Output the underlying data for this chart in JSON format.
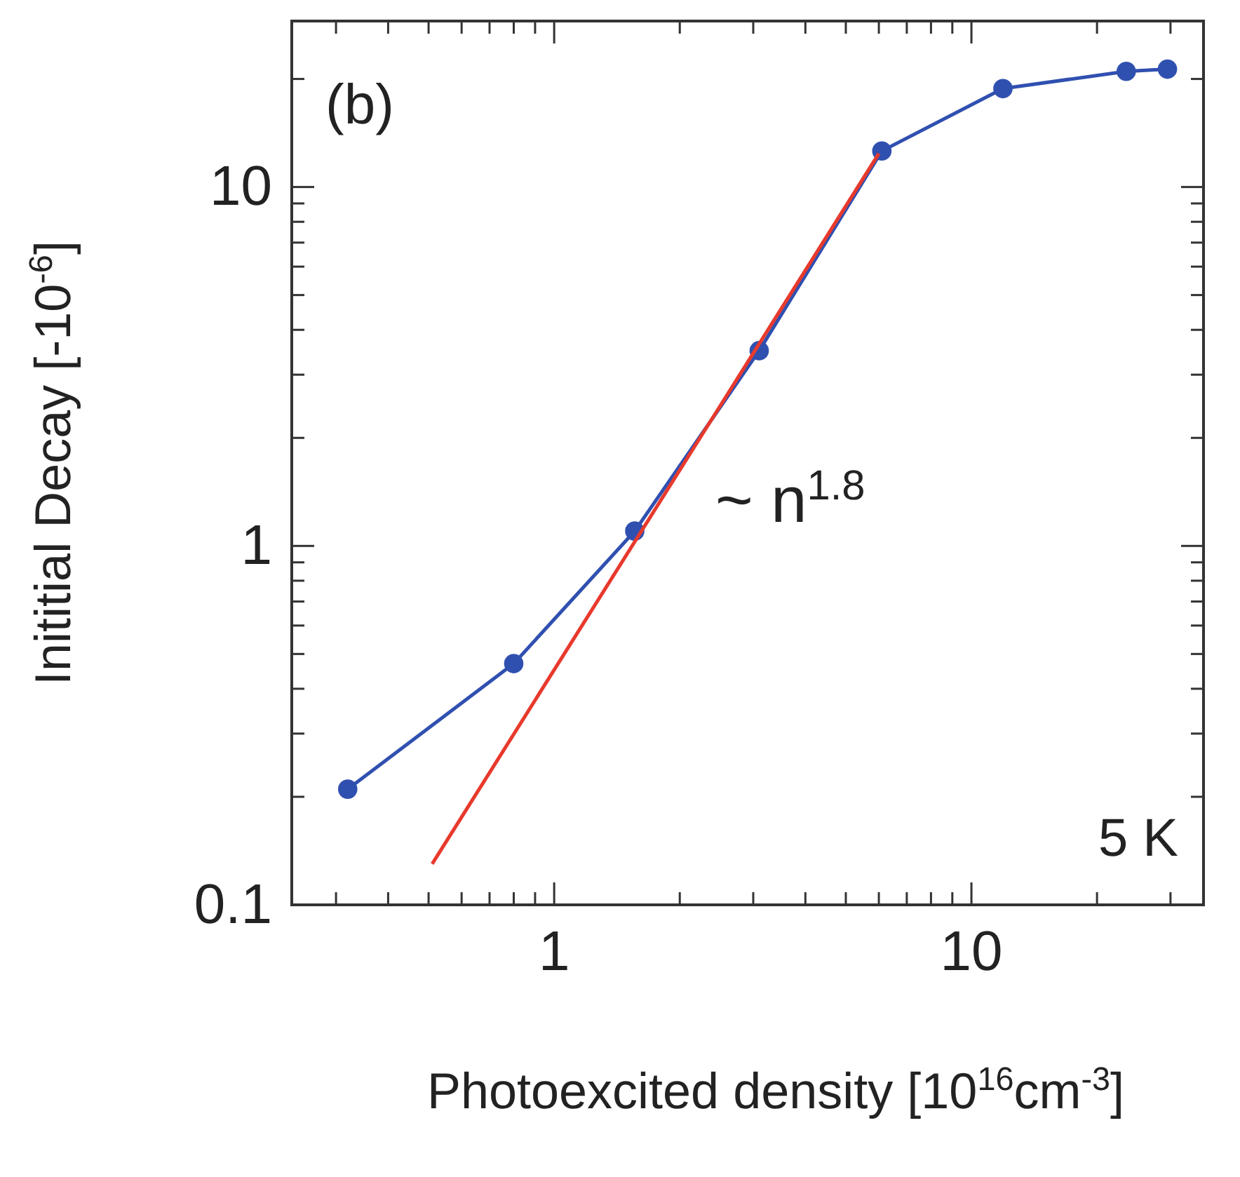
{
  "chart_data": {
    "type": "line",
    "xlabel": "Photoexcited density [10$^{16}$cm$^{-3}$]",
    "ylabel": "Inititial Decay [-10$^{-6}$]",
    "log": "xy",
    "xlim": [
      0.235,
      36
    ],
    "ylim": [
      0.1,
      29
    ],
    "xticks": [
      {
        "value": 0.3,
        "label": null
      },
      {
        "value": 0.4,
        "label": null
      },
      {
        "value": 0.5,
        "label": null
      },
      {
        "value": 0.6,
        "label": null
      },
      {
        "value": 0.7,
        "label": null
      },
      {
        "value": 0.8,
        "label": null
      },
      {
        "value": 0.9,
        "label": null
      },
      1,
      {
        "value": 2,
        "label": null
      },
      {
        "value": 3,
        "label": null
      },
      {
        "value": 4,
        "label": null
      },
      {
        "value": 5,
        "label": null
      },
      {
        "value": 6,
        "label": null
      },
      {
        "value": 7,
        "label": null
      },
      {
        "value": 8,
        "label": null
      },
      {
        "value": 9,
        "label": null
      },
      10,
      {
        "value": 20,
        "label": null
      },
      {
        "value": 30,
        "label": null
      }
    ],
    "yticks": [
      0.1,
      {
        "value": 0.2,
        "label": null
      },
      {
        "value": 0.3,
        "label": null
      },
      {
        "value": 0.4,
        "label": null
      },
      {
        "value": 0.5,
        "label": null
      },
      {
        "value": 0.6,
        "label": null
      },
      {
        "value": 0.7,
        "label": null
      },
      {
        "value": 0.8,
        "label": null
      },
      {
        "value": 0.9,
        "label": null
      },
      1,
      {
        "value": 2,
        "label": null
      },
      {
        "value": 3,
        "label": null
      },
      {
        "value": 4,
        "label": null
      },
      {
        "value": 5,
        "label": null
      },
      {
        "value": 6,
        "label": null
      },
      {
        "value": 7,
        "label": null
      },
      {
        "value": 8,
        "label": null
      },
      {
        "value": 9,
        "label": null
      },
      10,
      {
        "value": 20,
        "label": null
      }
    ],
    "marker": "circle",
    "grid": false,
    "series": [
      {
        "color": "#3050b0",
        "x": [
          0.32,
          0.8,
          1.56,
          3.1,
          6.1,
          11.9,
          23.5,
          29.5
        ],
        "values": [
          0.21,
          0.47,
          1.1,
          3.5,
          12.6,
          18.8,
          21,
          21.3
        ]
      },
      {
        "type": "line",
        "marker": "none",
        "color": "#e8392c",
        "x": [
          0.51,
          6.0
        ],
        "values": [
          0.13,
          12.4
        ]
      }
    ],
    "annotations": [
      "(b)",
      "~ n$^{1.8}$",
      "5 K"
    ]
  }
}
